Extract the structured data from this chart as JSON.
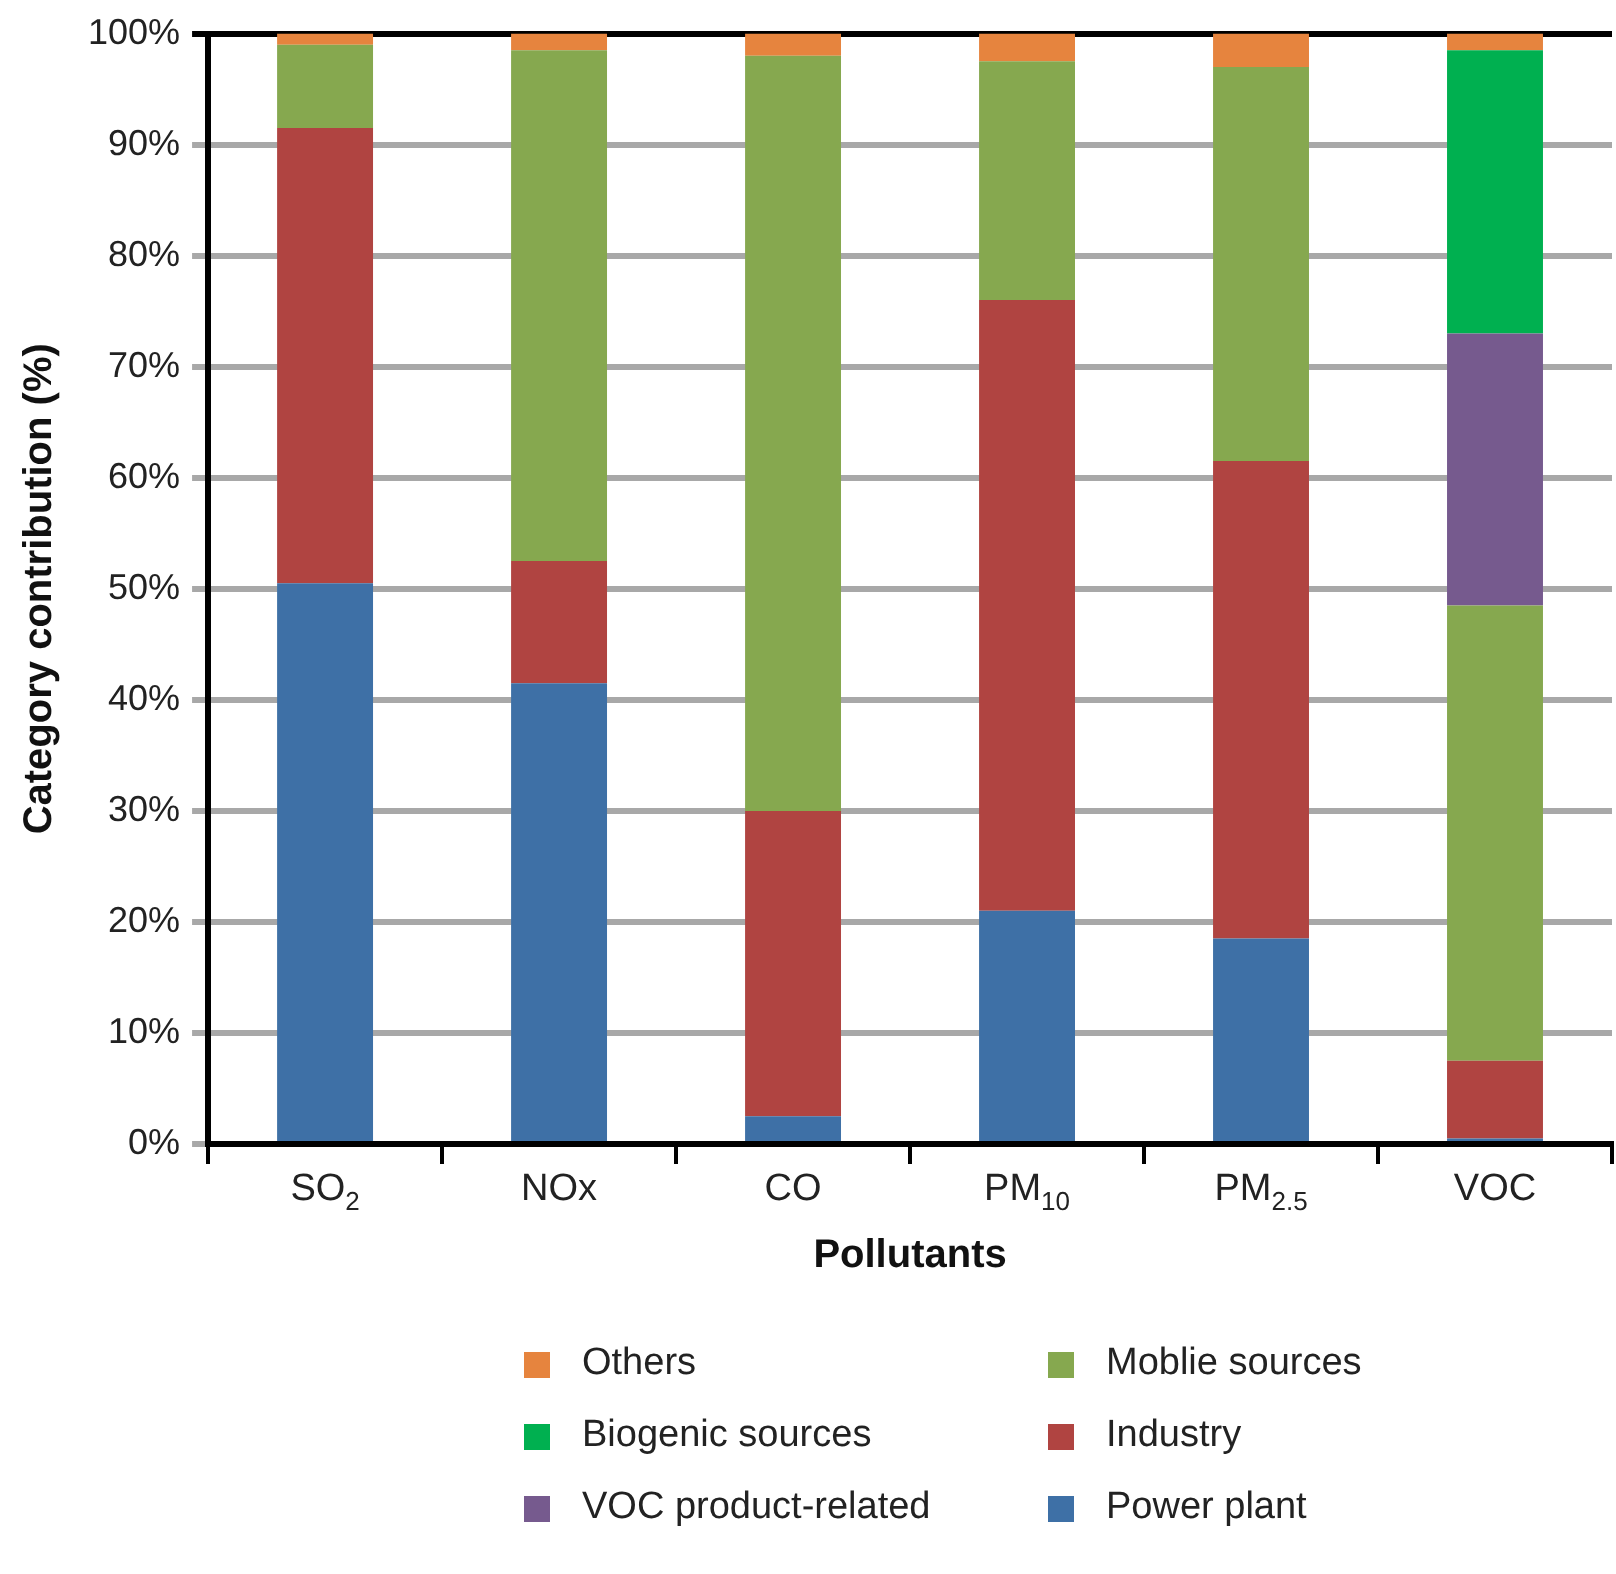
{
  "chart_data": {
    "type": "bar",
    "stacked": true,
    "ylabel": "Category contribution (%)",
    "xlabel": "Pollutants",
    "categories": [
      "SO$_{2}$",
      "NOx",
      "CO",
      "PM$_{10}$",
      "PM$_{2.5}$",
      "VOC"
    ],
    "series": [
      {
        "name": "Power plant",
        "color": "#3e70a6",
        "values": [
          50.5,
          41.5,
          2.5,
          21,
          18.5,
          0.5
        ]
      },
      {
        "name": "Industry",
        "color": "#b04441",
        "values": [
          41,
          11,
          27.5,
          55,
          43,
          7
        ]
      },
      {
        "name": "Moblie sources",
        "color": "#86a84f",
        "values": [
          7.5,
          46,
          68,
          21.5,
          35.5,
          41
        ]
      },
      {
        "name": "VOC product-related",
        "color": "#765a8e",
        "values": [
          0,
          0,
          0,
          0,
          0,
          24.5
        ]
      },
      {
        "name": "Biogenic sources",
        "color": "#00b050",
        "values": [
          0,
          0,
          0,
          0,
          0,
          25.5
        ]
      },
      {
        "name": "Others",
        "color": "#e6843e",
        "values": [
          1,
          1.5,
          2,
          2.5,
          3,
          1.5
        ]
      }
    ],
    "ylim": [
      0,
      100
    ],
    "yticks": [
      {
        "value": 0,
        "label": "0%"
      },
      {
        "value": 10,
        "label": "10%"
      },
      {
        "value": 20,
        "label": "20%"
      },
      {
        "value": 30,
        "label": "30%"
      },
      {
        "value": 40,
        "label": "40%"
      },
      {
        "value": 50,
        "label": "50%"
      },
      {
        "value": 60,
        "label": "60%"
      },
      {
        "value": 70,
        "label": "70%"
      },
      {
        "value": 80,
        "label": "80%"
      },
      {
        "value": 90,
        "label": "90%"
      },
      {
        "value": 100,
        "label": "100%"
      }
    ],
    "grid": "y",
    "legend": "bottom"
  }
}
